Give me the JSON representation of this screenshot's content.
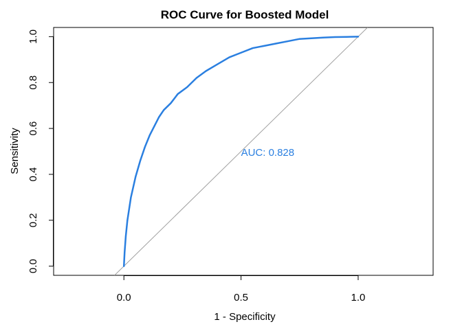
{
  "chart_data": {
    "type": "line",
    "title": "ROC Curve for Boosted Model",
    "xlabel": "1 - Specificity",
    "ylabel": "Sensitivity",
    "xlim": [
      -0.3,
      1.32
    ],
    "ylim": [
      -0.04,
      1.04
    ],
    "x_ticks": [
      0.0,
      0.5,
      1.0
    ],
    "x_tick_labels": [
      "0.0",
      "0.5",
      "1.0"
    ],
    "y_ticks": [
      0.0,
      0.2,
      0.4,
      0.6,
      0.8,
      1.0
    ],
    "y_tick_labels": [
      "0.0",
      "0.2",
      "0.4",
      "0.6",
      "0.8",
      "1.0"
    ],
    "grid": false,
    "series": [
      {
        "color": "#2a7fe0",
        "x": [
          0.0,
          0.003,
          0.008,
          0.015,
          0.03,
          0.05,
          0.07,
          0.09,
          0.11,
          0.13,
          0.15,
          0.17,
          0.2,
          0.23,
          0.27,
          0.31,
          0.35,
          0.4,
          0.45,
          0.5,
          0.55,
          0.6,
          0.65,
          0.7,
          0.75,
          0.8,
          0.85,
          0.9,
          0.95,
          1.0
        ],
        "y": [
          0.0,
          0.06,
          0.13,
          0.2,
          0.3,
          0.39,
          0.46,
          0.52,
          0.57,
          0.61,
          0.65,
          0.68,
          0.71,
          0.75,
          0.78,
          0.82,
          0.85,
          0.88,
          0.91,
          0.93,
          0.95,
          0.96,
          0.97,
          0.98,
          0.99,
          0.993,
          0.996,
          0.998,
          0.999,
          1.0
        ]
      }
    ],
    "reference_line": {
      "color": "#a0a0a0",
      "points": [
        [
          -0.04,
          -0.04
        ],
        [
          1.04,
          1.04
        ]
      ]
    },
    "annotation": {
      "text": "AUC: 0.828",
      "x": 0.5,
      "y": 0.48,
      "color": "#2a7fe0"
    }
  }
}
